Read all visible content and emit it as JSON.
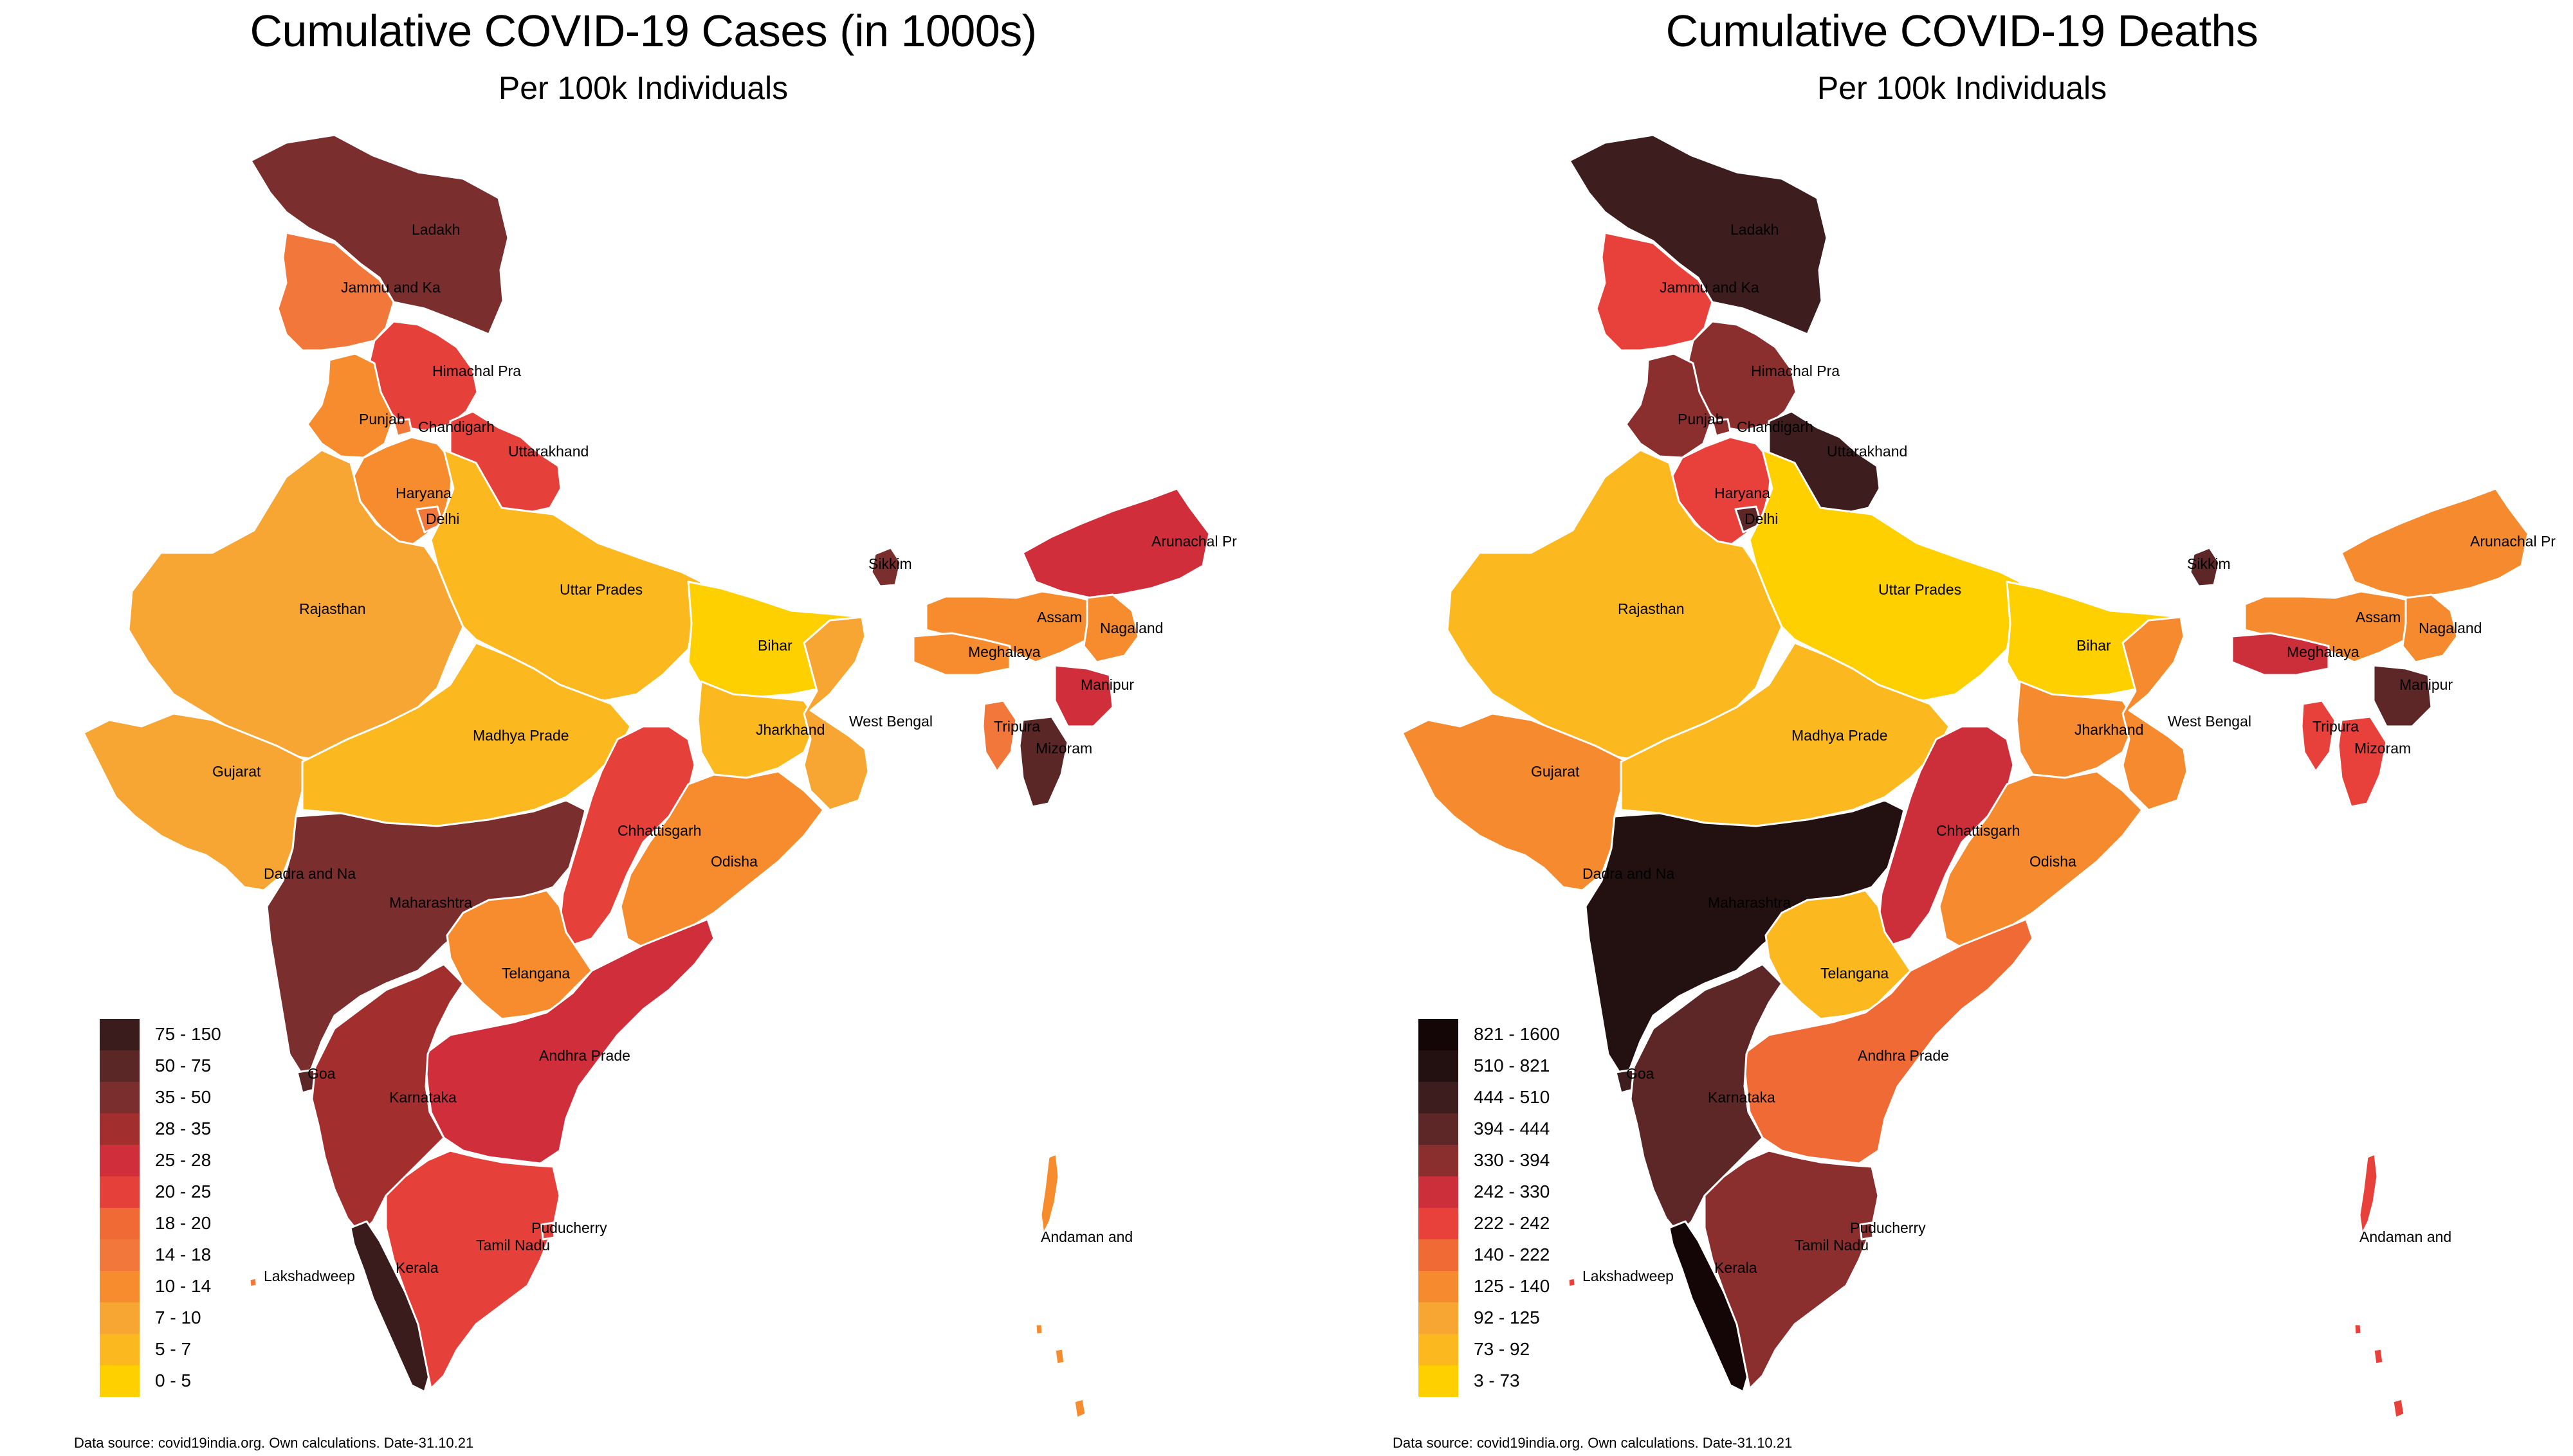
{
  "panels": [
    {
      "title": "Cumulative COVID-19 Cases (in 1000s)",
      "subtitle": "Per 100k Individuals",
      "source": "Data source: covid19india.org. Own calculations. Date-31.10.21",
      "legend": [
        {
          "label": "75 - 150",
          "color": "#3b1c1c"
        },
        {
          "label": "50 - 75",
          "color": "#5a2626"
        },
        {
          "label": "35 - 50",
          "color": "#7a2e2e"
        },
        {
          "label": "28 - 35",
          "color": "#a32e2e"
        },
        {
          "label": "25 - 28",
          "color": "#cf2e3a"
        },
        {
          "label": "20 - 25",
          "color": "#e6403a"
        },
        {
          "label": "18 - 20",
          "color": "#ef6a35"
        },
        {
          "label": "14 - 18",
          "color": "#f1773a"
        },
        {
          "label": "10 - 14",
          "color": "#f68c2e"
        },
        {
          "label": "7 - 10",
          "color": "#f7a533"
        },
        {
          "label": "5 - 7",
          "color": "#fbb91f"
        },
        {
          "label": "0 - 5",
          "color": "#ffd000"
        }
      ],
      "regions": {
        "ladakh": {
          "name": "Ladakh",
          "color": "#7a2e2e"
        },
        "jk": {
          "name": "Jammu and Ka",
          "color": "#f1773a"
        },
        "hp": {
          "name": "Himachal Pra",
          "color": "#e6403a"
        },
        "punjab": {
          "name": "Punjab",
          "color": "#f68c2e"
        },
        "chandigarh": {
          "name": "Chandigarh",
          "color": "#f1773a"
        },
        "uttarakhand": {
          "name": "Uttarakhand",
          "color": "#e6403a"
        },
        "haryana": {
          "name": "Haryana",
          "color": "#f68c2e"
        },
        "delhi": {
          "name": "Delhi",
          "color": "#f1773a"
        },
        "rajasthan": {
          "name": "Rajasthan",
          "color": "#f7a533"
        },
        "up": {
          "name": "Uttar Prades",
          "color": "#fbb91f"
        },
        "bihar": {
          "name": "Bihar",
          "color": "#ffd000"
        },
        "sikkim": {
          "name": "Sikkim",
          "color": "#7a2e2e"
        },
        "arunachal": {
          "name": "Arunachal Pr",
          "color": "#cf2e3a"
        },
        "assam": {
          "name": "Assam",
          "color": "#f68c2e"
        },
        "nagaland": {
          "name": "Nagaland",
          "color": "#f68c2e"
        },
        "meghalaya": {
          "name": "Meghalaya",
          "color": "#f68c2e"
        },
        "manipur": {
          "name": "Manipur",
          "color": "#cf2e3a"
        },
        "tripura": {
          "name": "Tripura",
          "color": "#f1773a"
        },
        "mizoram": {
          "name": "Mizoram",
          "color": "#5a2626"
        },
        "gujarat": {
          "name": "Gujarat",
          "color": "#f7a533"
        },
        "mp": {
          "name": "Madhya Prade",
          "color": "#fbb91f"
        },
        "jharkhand": {
          "name": "Jharkhand",
          "color": "#fbb91f"
        },
        "wb": {
          "name": "West Bengal",
          "color": "#f7a533"
        },
        "chhattisgarh": {
          "name": "Chhattisgarh",
          "color": "#e6403a"
        },
        "odisha": {
          "name": "Odisha",
          "color": "#f68c2e"
        },
        "dadra": {
          "name": "Dadra and Na",
          "color": "#f7a533"
        },
        "maharashtra": {
          "name": "Maharashtra",
          "color": "#7a2e2e"
        },
        "telangana": {
          "name": "Telangana",
          "color": "#f68c2e"
        },
        "ap": {
          "name": "Andhra Prade",
          "color": "#cf2e3a"
        },
        "goa": {
          "name": "Goa",
          "color": "#5a2626"
        },
        "karnataka": {
          "name": "Karnataka",
          "color": "#a32e2e"
        },
        "kerala": {
          "name": "Kerala",
          "color": "#3b1c1c"
        },
        "tn": {
          "name": "Tamil Nadu",
          "color": "#e6403a"
        },
        "puducherry": {
          "name": "Puducherry",
          "color": "#e6403a"
        },
        "lakshadweep": {
          "name": "Lakshadweep",
          "color": "#f1773a"
        },
        "andaman": {
          "name": "Andaman and",
          "color": "#f68c2e"
        }
      }
    },
    {
      "title": "Cumulative COVID-19 Deaths",
      "subtitle": "Per 100k Individuals",
      "source": "Data source: covid19india.org. Own calculations. Date-31.10.21",
      "legend": [
        {
          "label": "821 - 1600",
          "color": "#140606"
        },
        {
          "label": "510 - 821",
          "color": "#231111"
        },
        {
          "label": "444 - 510",
          "color": "#3d1d1d"
        },
        {
          "label": "394 - 444",
          "color": "#5d2727"
        },
        {
          "label": "330 - 394",
          "color": "#8a2e2e"
        },
        {
          "label": "242 - 330",
          "color": "#cc2e3a"
        },
        {
          "label": "222 - 242",
          "color": "#e8413b"
        },
        {
          "label": "140 - 222",
          "color": "#ef6a35"
        },
        {
          "label": "125 - 140",
          "color": "#f68a2e"
        },
        {
          "label": "92 - 125",
          "color": "#f7a533"
        },
        {
          "label": "73 - 92",
          "color": "#fbb91f"
        },
        {
          "label": "3 - 73",
          "color": "#ffd000"
        }
      ],
      "regions": {
        "ladakh": {
          "name": "Ladakh",
          "color": "#3d1d1d"
        },
        "jk": {
          "name": "Jammu and Ka",
          "color": "#e8413b"
        },
        "hp": {
          "name": "Himachal Pra",
          "color": "#8a2e2e"
        },
        "punjab": {
          "name": "Punjab",
          "color": "#8a2e2e"
        },
        "chandigarh": {
          "name": "Chandigarh",
          "color": "#8a2e2e"
        },
        "uttarakhand": {
          "name": "Uttarakhand",
          "color": "#3d1d1d"
        },
        "haryana": {
          "name": "Haryana",
          "color": "#e8413b"
        },
        "delhi": {
          "name": "Delhi",
          "color": "#5d2727"
        },
        "rajasthan": {
          "name": "Rajasthan",
          "color": "#fbb91f"
        },
        "up": {
          "name": "Uttar Prades",
          "color": "#ffd000"
        },
        "bihar": {
          "name": "Bihar",
          "color": "#ffd000"
        },
        "sikkim": {
          "name": "Sikkim",
          "color": "#5d2727"
        },
        "arunachal": {
          "name": "Arunachal Pr",
          "color": "#f68a2e"
        },
        "assam": {
          "name": "Assam",
          "color": "#f68a2e"
        },
        "nagaland": {
          "name": "Nagaland",
          "color": "#f68a2e"
        },
        "meghalaya": {
          "name": "Meghalaya",
          "color": "#cc2e3a"
        },
        "manipur": {
          "name": "Manipur",
          "color": "#5d2727"
        },
        "tripura": {
          "name": "Tripura",
          "color": "#e8413b"
        },
        "mizoram": {
          "name": "Mizoram",
          "color": "#e8413b"
        },
        "gujarat": {
          "name": "Gujarat",
          "color": "#f68a2e"
        },
        "mp": {
          "name": "Madhya Prade",
          "color": "#fbb91f"
        },
        "jharkhand": {
          "name": "Jharkhand",
          "color": "#f68a2e"
        },
        "wb": {
          "name": "West Bengal",
          "color": "#f68a2e"
        },
        "chhattisgarh": {
          "name": "Chhattisgarh",
          "color": "#cc2e3a"
        },
        "odisha": {
          "name": "Odisha",
          "color": "#f68a2e"
        },
        "dadra": {
          "name": "Dadra and Na",
          "color": "#f7a533"
        },
        "maharashtra": {
          "name": "Maharashtra",
          "color": "#231111"
        },
        "telangana": {
          "name": "Telangana",
          "color": "#fbb91f"
        },
        "ap": {
          "name": "Andhra Prade",
          "color": "#ef6a35"
        },
        "goa": {
          "name": "Goa",
          "color": "#3d1d1d"
        },
        "karnataka": {
          "name": "Karnataka",
          "color": "#5d2727"
        },
        "kerala": {
          "name": "Kerala",
          "color": "#140606"
        },
        "tn": {
          "name": "Tamil Nadu",
          "color": "#8a2e2e"
        },
        "puducherry": {
          "name": "Puducherry",
          "color": "#8a2e2e"
        },
        "lakshadweep": {
          "name": "Lakshadweep",
          "color": "#e8413b"
        },
        "andaman": {
          "name": "Andaman and",
          "color": "#e8413b"
        }
      }
    }
  ]
}
